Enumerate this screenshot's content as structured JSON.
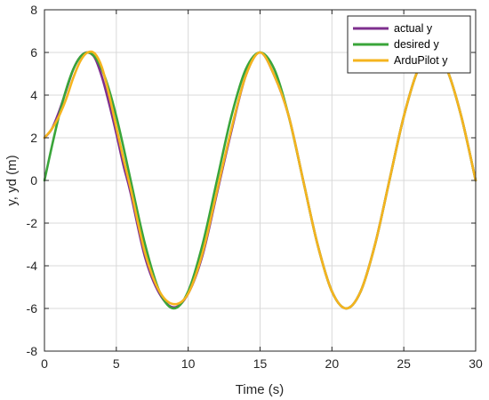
{
  "chart_data": {
    "type": "line",
    "title": "",
    "xlabel": "Time (s)",
    "ylabel": "y, yd (m)",
    "xlim": [
      0,
      30
    ],
    "ylim": [
      -8,
      8
    ],
    "xticks": [
      0,
      5,
      10,
      15,
      20,
      25,
      30
    ],
    "yticks": [
      -8,
      -6,
      -4,
      -2,
      0,
      2,
      4,
      6,
      8
    ],
    "xtick_labels": [
      "0",
      "5",
      "10",
      "15",
      "20",
      "25",
      "30"
    ],
    "ytick_labels": [
      "-8",
      "-6",
      "-4",
      "-2",
      "0",
      "2",
      "4",
      "6",
      "8"
    ],
    "grid": true,
    "legend_position": "top-right",
    "series": [
      {
        "name": "actual y",
        "color": "#7E2F8E",
        "x": [
          0,
          0.5,
          1,
          1.5,
          2,
          2.5,
          3,
          3.5,
          4,
          4.5,
          5,
          5.5,
          6,
          7,
          8,
          9,
          10,
          11,
          12,
          13,
          14,
          15,
          16,
          17,
          18,
          19,
          20,
          21,
          22,
          23,
          24,
          25,
          26,
          27,
          28,
          29,
          30
        ],
        "values": [
          2.0,
          2.4,
          3.2,
          4.2,
          5.2,
          5.8,
          6.0,
          5.75,
          4.85,
          3.6,
          2.2,
          0.7,
          -0.6,
          -3.6,
          -5.3,
          -5.95,
          -5.3,
          -3.5,
          -0.6,
          2.3,
          4.9,
          6.0,
          4.9,
          3.0,
          0.0,
          -3.0,
          -5.2,
          -6.0,
          -5.2,
          -3.0,
          0.0,
          3.0,
          5.2,
          6.0,
          5.2,
          3.0,
          0.0
        ]
      },
      {
        "name": "desired y",
        "color": "#3AA53A",
        "x": [
          0,
          0.5,
          1,
          1.5,
          2,
          2.5,
          3,
          3.5,
          4,
          4.5,
          5,
          5.5,
          6,
          7,
          8,
          9,
          10,
          11,
          12,
          13,
          14,
          15,
          16,
          17,
          18,
          19,
          20,
          21,
          22,
          23,
          24,
          25,
          26,
          27,
          28,
          29,
          30
        ],
        "values": [
          0.0,
          1.55,
          3.0,
          4.24,
          5.2,
          5.8,
          6.0,
          5.8,
          5.2,
          4.24,
          3.0,
          1.55,
          0.0,
          -3.0,
          -5.2,
          -6.0,
          -5.2,
          -3.0,
          0.0,
          3.0,
          5.2,
          6.0,
          5.2,
          3.0,
          0.0,
          -3.0,
          -5.2,
          -6.0,
          -5.2,
          -3.0,
          0.0,
          3.0,
          5.2,
          6.0,
          5.2,
          3.0,
          0.0
        ]
      },
      {
        "name": "ArduPilot y",
        "color": "#F5B41E",
        "x": [
          0,
          0.5,
          1,
          1.5,
          2,
          2.5,
          3,
          3.5,
          4,
          4.5,
          5,
          5.5,
          6,
          7,
          8,
          9,
          10,
          11,
          12,
          13,
          14,
          15,
          16,
          17,
          18,
          19,
          20,
          21,
          22,
          23,
          24,
          25,
          26,
          27,
          28,
          29,
          30
        ],
        "values": [
          2.0,
          2.4,
          3.0,
          3.8,
          4.8,
          5.6,
          6.0,
          5.95,
          5.3,
          4.0,
          2.5,
          1.0,
          -0.4,
          -3.4,
          -5.2,
          -5.8,
          -5.3,
          -3.4,
          -0.5,
          2.4,
          4.9,
          6.0,
          4.9,
          3.0,
          0.0,
          -3.0,
          -5.2,
          -6.0,
          -5.2,
          -3.0,
          0.0,
          3.0,
          5.2,
          6.0,
          5.2,
          3.0,
          0.0
        ]
      }
    ]
  }
}
